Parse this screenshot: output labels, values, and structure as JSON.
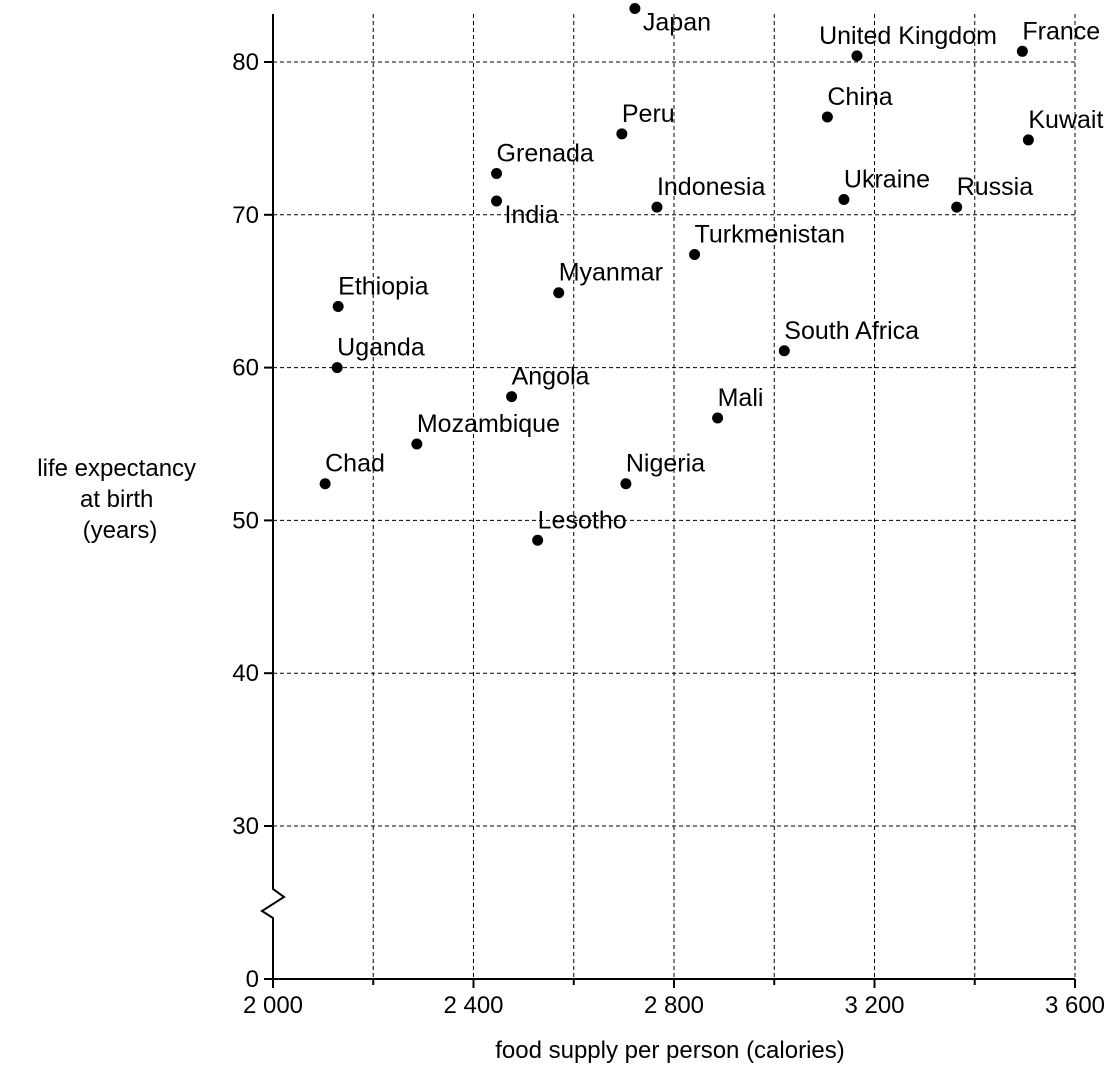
{
  "chart_data": {
    "type": "scatter",
    "title": "",
    "xlabel": "food supply per person (calories)",
    "ylabel_lines": [
      "life expectancy",
      "at birth",
      "(years)"
    ],
    "xlim": [
      2000,
      3600
    ],
    "ylim": [
      0,
      80
    ],
    "y_axis_break": true,
    "x_ticks": [
      {
        "value": 2000,
        "label": "2 000"
      },
      {
        "value": 2400,
        "label": "2 400"
      },
      {
        "value": 2800,
        "label": "2 800"
      },
      {
        "value": 3200,
        "label": "3 200"
      },
      {
        "value": 3600,
        "label": "3 600"
      }
    ],
    "x_minor_ticks": [
      2200,
      2600,
      3000,
      3400
    ],
    "x_grid": [
      2200,
      2400,
      2600,
      2800,
      3000,
      3200,
      3400,
      3600
    ],
    "y_ticks": [
      {
        "value": 0,
        "label": "0"
      },
      {
        "value": 30,
        "label": "30"
      },
      {
        "value": 40,
        "label": "40"
      },
      {
        "value": 50,
        "label": "50"
      },
      {
        "value": 60,
        "label": "60"
      },
      {
        "value": 70,
        "label": "70"
      },
      {
        "value": 80,
        "label": "80"
      }
    ],
    "grid": true,
    "points": [
      {
        "label": "Japan",
        "x": 2722,
        "y": 83.5,
        "label_pos": "below-right"
      },
      {
        "label": "United Kingdom",
        "x": 3165,
        "y": 80.4,
        "label_pos": "above-left"
      },
      {
        "label": "France",
        "x": 3495,
        "y": 80.7,
        "label_pos": "above"
      },
      {
        "label": "China",
        "x": 3106,
        "y": 76.4,
        "label_pos": "above"
      },
      {
        "label": "Kuwait",
        "x": 3507,
        "y": 74.9,
        "label_pos": "above"
      },
      {
        "label": "Peru",
        "x": 2696,
        "y": 75.3,
        "label_pos": "above"
      },
      {
        "label": "Grenada",
        "x": 2446,
        "y": 72.7,
        "label_pos": "below"
      },
      {
        "label": "India",
        "x": 2446,
        "y": 70.9,
        "label_pos": "below-right"
      },
      {
        "label": "Indonesia",
        "x": 2766,
        "y": 70.5,
        "label_pos": "above"
      },
      {
        "label": "Ukraine",
        "x": 3139,
        "y": 71.0,
        "label_pos": "above"
      },
      {
        "label": "Russia",
        "x": 3364,
        "y": 70.5,
        "label_pos": "above"
      },
      {
        "label": "Turkmenistan",
        "x": 2841,
        "y": 67.4,
        "label_pos": "above"
      },
      {
        "label": "Myanmar",
        "x": 2570,
        "y": 64.9,
        "label_pos": "above"
      },
      {
        "label": "Ethiopia",
        "x": 2130,
        "y": 64.0,
        "label_pos": "above"
      },
      {
        "label": "South Africa",
        "x": 3020,
        "y": 61.1,
        "label_pos": "above"
      },
      {
        "label": "Uganda",
        "x": 2128,
        "y": 60.0,
        "label_pos": "above"
      },
      {
        "label": "Angola",
        "x": 2476,
        "y": 58.1,
        "label_pos": "above"
      },
      {
        "label": "Mali",
        "x": 2887,
        "y": 56.7,
        "label_pos": "above"
      },
      {
        "label": "Mozambique",
        "x": 2287,
        "y": 55.0,
        "label_pos": "above"
      },
      {
        "label": "Chad",
        "x": 2104,
        "y": 52.4,
        "label_pos": "above"
      },
      {
        "label": "Nigeria",
        "x": 2704,
        "y": 52.4,
        "label_pos": "above"
      },
      {
        "label": "Lesotho",
        "x": 2528,
        "y": 48.7,
        "label_pos": "above"
      }
    ]
  }
}
